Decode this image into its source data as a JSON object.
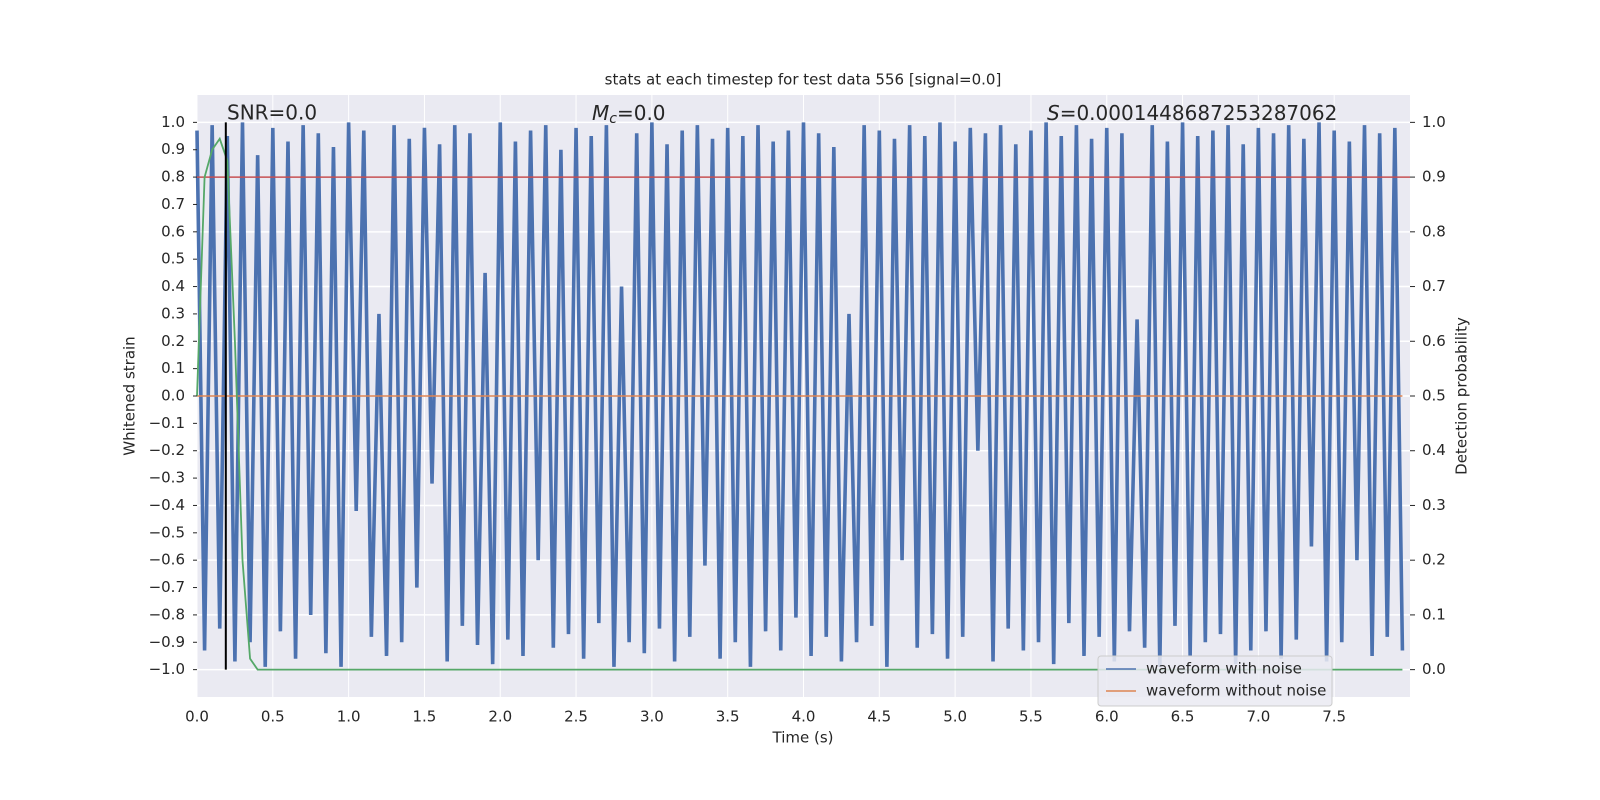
{
  "chart_data": {
    "type": "line",
    "title": "stats at each timestep for test data 556 [signal=0.0]",
    "xlabel": "Time (s)",
    "ylabel": "Whitened strain",
    "y2label": "Detection probability",
    "grid": true,
    "legend": "lower right",
    "xlim": [
      0,
      8
    ],
    "ylim": [
      -1.1,
      1.1
    ],
    "y2lim": [
      -0.05,
      1.05
    ],
    "xticks": [
      {
        "value": 0,
        "label": "0.0"
      },
      0.5,
      {
        "value": 1,
        "label": "1.0"
      },
      1.5,
      {
        "value": 2,
        "label": "2.0"
      },
      2.5,
      {
        "value": 3,
        "label": "3.0"
      },
      3.5,
      {
        "value": 4,
        "label": "4.0"
      },
      4.5,
      {
        "value": 5,
        "label": "5.0"
      },
      5.5,
      {
        "value": 6,
        "label": "6.0"
      },
      6.5,
      {
        "value": 7,
        "label": "7.0"
      },
      7.5
    ],
    "yticks": [
      {
        "value": -1,
        "label": "−1.0"
      },
      {
        "value": -0.9,
        "label": "−0.9"
      },
      {
        "value": -0.8,
        "label": "−0.8"
      },
      {
        "value": -0.7,
        "label": "−0.7"
      },
      {
        "value": -0.6,
        "label": "−0.6"
      },
      {
        "value": -0.5,
        "label": "−0.5"
      },
      {
        "value": -0.4,
        "label": "−0.4"
      },
      {
        "value": -0.3,
        "label": "−0.3"
      },
      {
        "value": -0.2,
        "label": "−0.2"
      },
      {
        "value": -0.1,
        "label": "−0.1"
      },
      {
        "value": 0,
        "label": "0.0"
      },
      0.1,
      0.2,
      0.3,
      0.4,
      0.5,
      0.6,
      0.7,
      0.8,
      0.9,
      {
        "value": 1,
        "label": "1.0"
      }
    ],
    "y2ticks": [
      {
        "value": 0,
        "label": "0.0"
      },
      0.1,
      0.2,
      0.3,
      0.4,
      0.5,
      0.6,
      0.7,
      0.8,
      0.9,
      {
        "value": 1,
        "label": "1.0"
      }
    ],
    "series": [
      {
        "name": "waveform with noise",
        "color": "#4c72b0",
        "x": [
          0,
          0.05,
          0.1,
          0.15,
          0.2,
          0.25,
          0.3,
          0.35,
          0.4,
          0.45,
          0.5,
          0.55,
          0.6,
          0.65,
          0.7,
          0.75,
          0.8,
          0.85,
          0.9,
          0.95,
          1,
          1.05,
          1.1,
          1.15,
          1.2,
          1.25,
          1.3,
          1.35,
          1.4,
          1.45,
          1.5,
          1.55,
          1.6,
          1.65,
          1.7,
          1.75,
          1.8,
          1.85,
          1.9,
          1.95,
          2,
          2.05,
          2.1,
          2.15,
          2.2,
          2.25,
          2.3,
          2.35,
          2.4,
          2.45,
          2.5,
          2.55,
          2.6,
          2.65,
          2.7,
          2.75,
          2.8,
          2.85,
          2.9,
          2.95,
          3,
          3.05,
          3.1,
          3.15,
          3.2,
          3.25,
          3.3,
          3.35,
          3.4,
          3.45,
          3.5,
          3.55,
          3.6,
          3.65,
          3.7,
          3.75,
          3.8,
          3.85,
          3.9,
          3.95,
          4,
          4.05,
          4.1,
          4.15,
          4.2,
          4.25,
          4.3,
          4.35,
          4.4,
          4.45,
          4.5,
          4.55,
          4.6,
          4.65,
          4.7,
          4.75,
          4.8,
          4.85,
          4.9,
          4.95,
          5,
          5.05,
          5.1,
          5.15,
          5.2,
          5.25,
          5.3,
          5.35,
          5.4,
          5.45,
          5.5,
          5.55,
          5.6,
          5.65,
          5.7,
          5.75,
          5.8,
          5.85,
          5.9,
          5.95,
          6,
          6.05,
          6.1,
          6.15,
          6.2,
          6.25,
          6.3,
          6.35,
          6.4,
          6.45,
          6.5,
          6.55,
          6.6,
          6.65,
          6.7,
          6.75,
          6.8,
          6.85,
          6.9,
          6.95,
          7,
          7.05,
          7.1,
          7.15,
          7.2,
          7.25,
          7.3,
          7.35,
          7.4,
          7.45,
          7.5,
          7.55,
          7.6,
          7.65,
          7.7,
          7.75,
          7.8,
          7.85,
          7.9,
          7.95
        ],
        "values": [
          0.97,
          -0.93,
          0.99,
          -0.85,
          0.95,
          -0.97,
          1.0,
          -0.9,
          0.88,
          -0.99,
          0.98,
          -0.86,
          0.93,
          -0.96,
          0.99,
          -0.8,
          0.96,
          -0.94,
          0.91,
          -0.99,
          1.0,
          -0.42,
          0.97,
          -0.88,
          0.3,
          -0.95,
          0.99,
          -0.9,
          0.94,
          -0.7,
          0.98,
          -0.32,
          0.92,
          -0.97,
          0.99,
          -0.84,
          0.96,
          -0.91,
          0.45,
          -0.98,
          1.0,
          -0.89,
          0.93,
          -0.95,
          0.97,
          -0.6,
          0.99,
          -0.92,
          0.9,
          -0.87,
          0.98,
          -0.96,
          0.95,
          -0.83,
          0.99,
          -0.99,
          0.4,
          -0.9,
          0.96,
          -0.94,
          1.0,
          -0.85,
          0.92,
          -0.97,
          0.97,
          -0.88,
          0.99,
          -0.62,
          0.94,
          -0.96,
          0.98,
          -0.9,
          0.95,
          -0.99,
          0.99,
          -0.86,
          0.93,
          -0.93,
          0.97,
          -0.81,
          1.0,
          -0.95,
          0.96,
          -0.88,
          0.91,
          -0.97,
          0.3,
          -0.9,
          0.99,
          -0.84,
          0.97,
          -0.99,
          0.94,
          -0.6,
          0.99,
          -0.92,
          0.95,
          -0.87,
          1.0,
          -0.96,
          0.93,
          -0.88,
          0.98,
          -0.2,
          0.96,
          -0.97,
          0.99,
          -0.85,
          0.92,
          -0.93,
          0.97,
          -0.9,
          1.0,
          -0.98,
          0.95,
          -0.83,
          0.99,
          -0.95,
          0.94,
          -0.88,
          0.98,
          -0.97,
          0.96,
          -0.86,
          0.28,
          -0.92,
          0.99,
          -0.99,
          0.93,
          -0.84,
          1.0,
          -0.95,
          0.95,
          -0.9,
          0.97,
          -0.87,
          0.99,
          -0.98,
          0.92,
          -0.93,
          0.98,
          -0.86,
          0.96,
          -0.96,
          0.99,
          -0.89,
          0.94,
          -0.55,
          1.0,
          -0.97,
          0.97,
          -0.9,
          0.93,
          -0.6,
          0.99,
          -0.95,
          0.96,
          -0.88,
          0.98,
          -0.93
        ]
      },
      {
        "name": "waveform without noise",
        "color": "#dd8452",
        "x": [
          0,
          7.95
        ],
        "values": [
          0,
          0
        ]
      }
    ],
    "threshold": {
      "value": 0.8,
      "color": "#c44e52"
    },
    "probability": {
      "axis": "y2",
      "color": "#55a868",
      "x": [
        0,
        0.05,
        0.1,
        0.15,
        0.2,
        0.25,
        0.3,
        0.35,
        0.4,
        7.95
      ],
      "values": [
        0.5,
        0.9,
        0.95,
        0.97,
        0.93,
        0.6,
        0.2,
        0.02,
        0,
        0
      ]
    },
    "vline": {
      "value": 0.19,
      "color": "#000000"
    },
    "annotations": {
      "snr": "SNR=0.0",
      "mc": {
        "symbol": "M",
        "subscript": "c",
        "text": "=0.0"
      },
      "s": {
        "symbol": "S",
        "text": "=0.0001448687253287062"
      }
    }
  }
}
